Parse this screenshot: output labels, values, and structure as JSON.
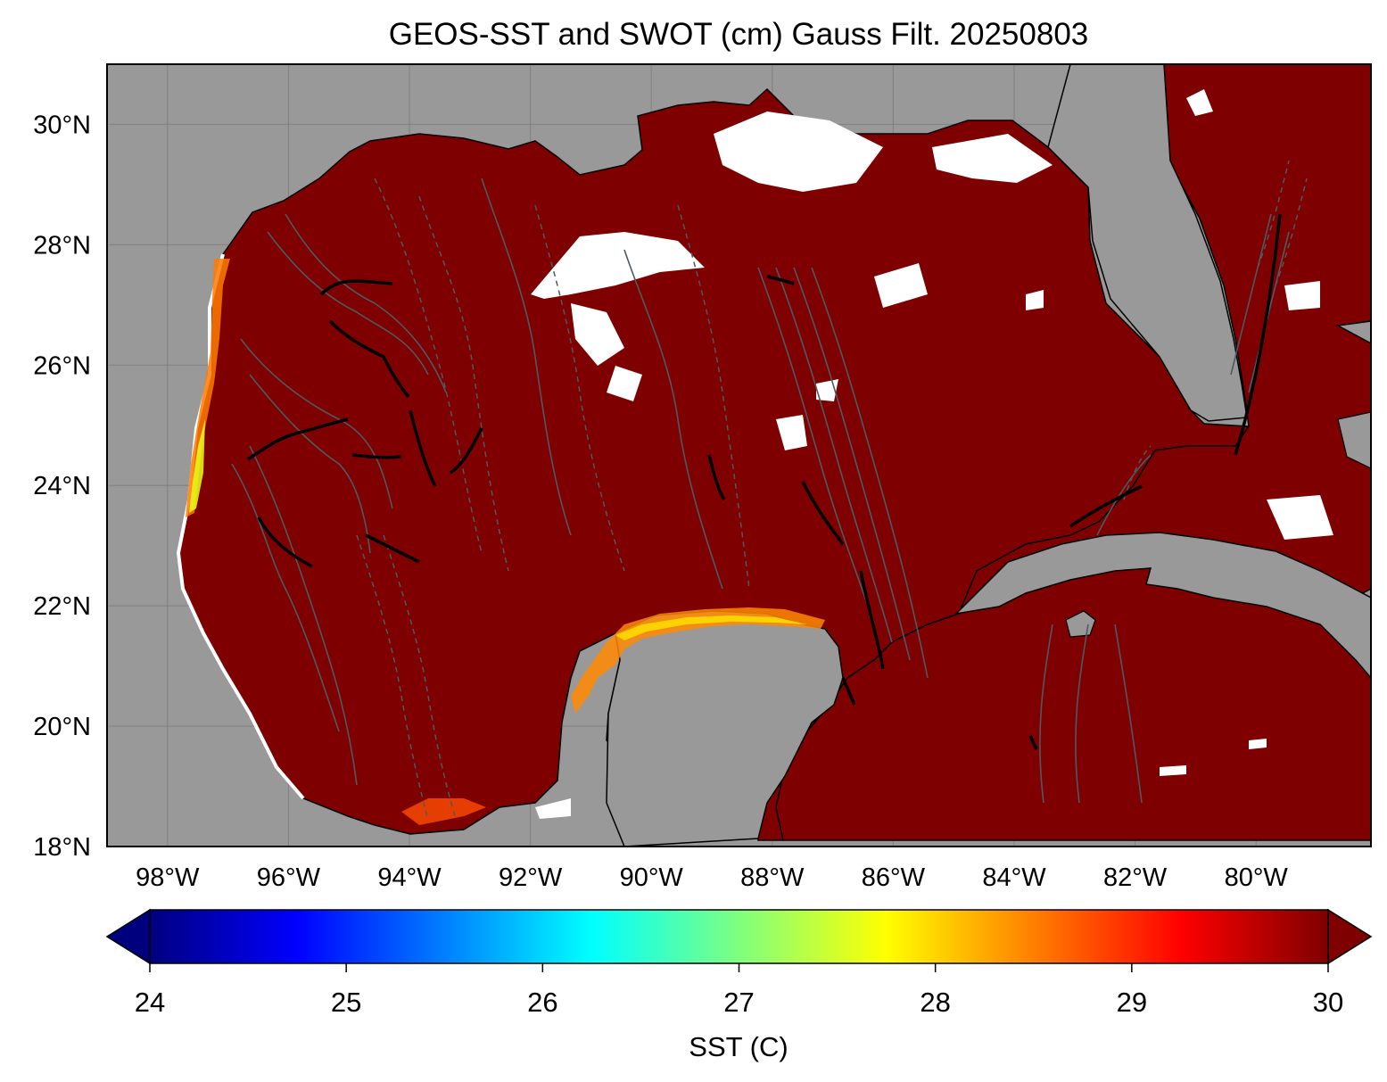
{
  "title": "GEOS-SST  and SWOT (cm) Gauss Filt. 20250803",
  "map": {
    "extent": {
      "lon_min": -99.0,
      "lon_max": -78.1,
      "lat_min": 18.0,
      "lat_max": 31.0
    },
    "lon_ticks": [
      {
        "value": -98,
        "label": "98°W"
      },
      {
        "value": -96,
        "label": "96°W"
      },
      {
        "value": -94,
        "label": "94°W"
      },
      {
        "value": -92,
        "label": "92°W"
      },
      {
        "value": -90,
        "label": "90°W"
      },
      {
        "value": -88,
        "label": "88°W"
      },
      {
        "value": -86,
        "label": "86°W"
      },
      {
        "value": -84,
        "label": "84°W"
      },
      {
        "value": -82,
        "label": "82°W"
      },
      {
        "value": -80,
        "label": "80°W"
      }
    ],
    "lat_ticks": [
      {
        "value": 18,
        "label": "18°N"
      },
      {
        "value": 20,
        "label": "20°N"
      },
      {
        "value": 22,
        "label": "22°N"
      },
      {
        "value": 24,
        "label": "24°N"
      },
      {
        "value": 26,
        "label": "26°N"
      },
      {
        "value": 28,
        "label": "28°N"
      },
      {
        "value": 30,
        "label": "30°N"
      }
    ],
    "colors": {
      "land": "#999999",
      "ocean_max": "#7f0000",
      "gridline": "#6f6f6f",
      "contour": "#4d5a63",
      "coast": "#000000"
    },
    "gridlines": true
  },
  "colorbar": {
    "label": "SST (C)",
    "vmin": 24,
    "vmax": 30,
    "extend": "both",
    "ticks": [
      {
        "value": 24,
        "label": "24"
      },
      {
        "value": 25,
        "label": "25"
      },
      {
        "value": 26,
        "label": "26"
      },
      {
        "value": 27,
        "label": "27"
      },
      {
        "value": 28,
        "label": "28"
      },
      {
        "value": 29,
        "label": "29"
      },
      {
        "value": 30,
        "label": "30"
      }
    ],
    "colormap_stops": [
      "#00007f",
      "#0000ff",
      "#007fff",
      "#00ffff",
      "#7fff7f",
      "#ffff00",
      "#ff7f00",
      "#ff0000",
      "#7f0000"
    ]
  }
}
